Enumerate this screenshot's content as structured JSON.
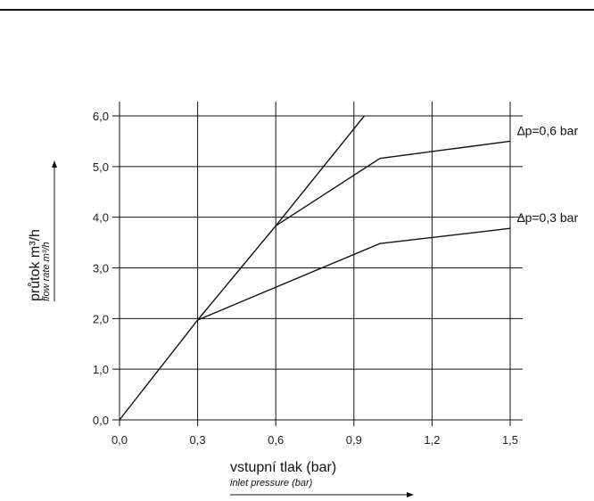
{
  "chart_data": {
    "type": "line",
    "xlabel": "vstupní tlak (bar)",
    "xlabel_secondary": "inlet pressure (bar)",
    "ylabel": "průtok m³/h",
    "ylabel_secondary": "flow rate m³/h",
    "xlim": [
      0.0,
      1.5
    ],
    "ylim": [
      0.0,
      6.0
    ],
    "x_ticks": [
      "0,0",
      "0,3",
      "0,6",
      "0,9",
      "1,2",
      "1,5"
    ],
    "y_ticks": [
      "0,0",
      "1,0",
      "2,0",
      "3,0",
      "4,0",
      "5,0",
      "6,0"
    ],
    "grid": true,
    "series": [
      {
        "name": "",
        "x": [
          0.0,
          0.3,
          0.6,
          0.94
        ],
        "y": [
          0.0,
          1.97,
          3.83,
          6.0
        ]
      },
      {
        "name": "∆p=0,6 bar",
        "x": [
          0.6,
          1.0,
          1.5
        ],
        "y": [
          3.83,
          5.16,
          5.5
        ]
      },
      {
        "name": "∆p=0,3 bar",
        "x": [
          0.3,
          1.0,
          1.5
        ],
        "y": [
          1.97,
          3.48,
          3.78
        ]
      }
    ]
  }
}
